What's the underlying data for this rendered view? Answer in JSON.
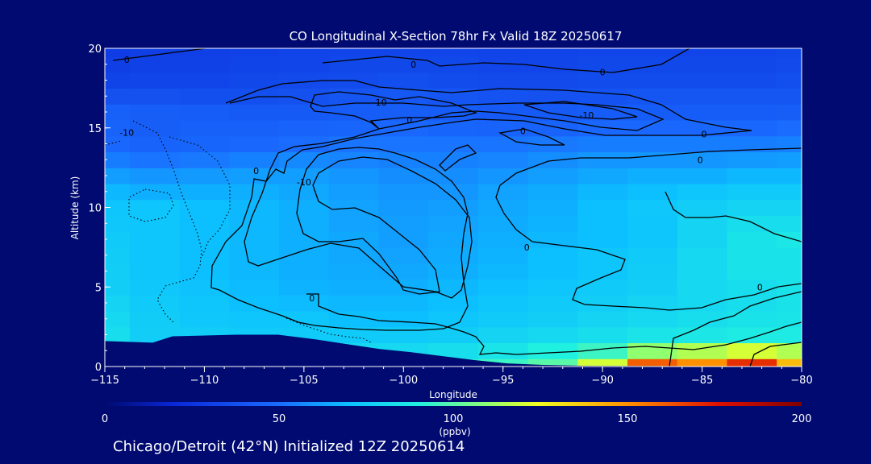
{
  "chart_data": {
    "type": "heatmap",
    "title": "CO Longitudinal X-Section 78hr  Fx Valid 18Z 20250617",
    "xlabel": "Longitude",
    "ylabel": "Altitude (km)",
    "xlim": [
      -115,
      -80
    ],
    "ylim": [
      0,
      20
    ],
    "xticks": [
      -115,
      -110,
      -105,
      -100,
      -95,
      -90,
      -85,
      -80
    ],
    "xtick_labels": [
      "−115",
      "−110",
      "−105",
      "−100",
      "−95",
      "−90",
      "−85",
      "−80"
    ],
    "yticks": [
      0,
      5,
      10,
      15,
      20
    ],
    "ytick_labels": [
      "0",
      "5",
      "10",
      "15",
      "20"
    ],
    "colorbar": {
      "min": 0,
      "max": 200,
      "ticks": [
        0,
        50,
        100,
        150,
        200
      ],
      "tick_labels": [
        "0",
        "50",
        "100",
        "150",
        "200"
      ],
      "unit_label": "(ppbv)"
    },
    "contour_labels": [
      {
        "text": "0",
        "lon": -113.9,
        "alt": 19.3
      },
      {
        "text": "0",
        "lon": -99.5,
        "alt": 19.0
      },
      {
        "text": "0",
        "lon": -90.0,
        "alt": 18.5
      },
      {
        "text": "-10",
        "lon": -113.9,
        "alt": 14.7
      },
      {
        "text": "-10",
        "lon": -101.2,
        "alt": 16.6
      },
      {
        "text": "0",
        "lon": -99.7,
        "alt": 15.5
      },
      {
        "text": "-10",
        "lon": -90.8,
        "alt": 15.8
      },
      {
        "text": "0",
        "lon": -94.0,
        "alt": 14.8
      },
      {
        "text": "0",
        "lon": -84.9,
        "alt": 14.6
      },
      {
        "text": "0",
        "lon": -85.1,
        "alt": 13.0
      },
      {
        "text": "0",
        "lon": -107.4,
        "alt": 12.3
      },
      {
        "text": "-10",
        "lon": -105.0,
        "alt": 11.6
      },
      {
        "text": "0",
        "lon": -93.8,
        "alt": 7.5
      },
      {
        "text": "0",
        "lon": -104.6,
        "alt": 4.3
      },
      {
        "text": "0",
        "lon": -82.1,
        "alt": 5.0
      }
    ],
    "terrain": [
      [
        -115,
        1.6
      ],
      [
        -112.6,
        1.5
      ],
      [
        -111.6,
        1.9
      ],
      [
        -108.4,
        2.0
      ],
      [
        -106.3,
        2.0
      ],
      [
        -104.4,
        1.7
      ],
      [
        -102.8,
        1.4
      ],
      [
        -101.2,
        1.1
      ],
      [
        -99.6,
        0.9
      ],
      [
        -98.0,
        0.65
      ],
      [
        -96.4,
        0.4
      ],
      [
        -94.8,
        0.2
      ],
      [
        -93.0,
        0.1
      ],
      [
        -91.0,
        0.05
      ],
      [
        -80,
        0.0
      ]
    ],
    "field": {
      "x": [
        -115,
        -112.5,
        -110,
        -107.5,
        -105,
        -102.5,
        -100,
        -97.5,
        -95,
        -92.5,
        -90,
        -87.5,
        -85,
        -82.5,
        -80
      ],
      "y": [
        0,
        1,
        2,
        3,
        4,
        5,
        6,
        7,
        8,
        9,
        10,
        11,
        12,
        13,
        14,
        15,
        16,
        17,
        18,
        19,
        20
      ],
      "values": [
        [
          55,
          60,
          70,
          75,
          75,
          80,
          85,
          90,
          95,
          100,
          120,
          160,
          150,
          170,
          140
        ],
        [
          70,
          72,
          74,
          76,
          78,
          80,
          80,
          82,
          85,
          90,
          95,
          110,
          115,
          120,
          115
        ],
        [
          82,
          76,
          75,
          74,
          74,
          74,
          74,
          75,
          78,
          80,
          82,
          85,
          86,
          88,
          88
        ],
        [
          80,
          75,
          73,
          72,
          72,
          70,
          70,
          72,
          74,
          76,
          78,
          80,
          82,
          84,
          85
        ],
        [
          78,
          74,
          72,
          70,
          69,
          68,
          68,
          70,
          72,
          74,
          76,
          78,
          80,
          82,
          84
        ],
        [
          76,
          73,
          71,
          69,
          67,
          66,
          66,
          68,
          70,
          72,
          74,
          76,
          80,
          82,
          84
        ],
        [
          76,
          72,
          70,
          68,
          66,
          65,
          64,
          66,
          68,
          70,
          72,
          75,
          80,
          84,
          84
        ],
        [
          75,
          72,
          70,
          68,
          66,
          64,
          63,
          65,
          67,
          70,
          72,
          74,
          80,
          84,
          84
        ],
        [
          74,
          72,
          70,
          68,
          66,
          64,
          62,
          64,
          66,
          68,
          70,
          72,
          78,
          84,
          86
        ],
        [
          73,
          72,
          70,
          68,
          66,
          63,
          62,
          63,
          65,
          67,
          70,
          72,
          78,
          82,
          82
        ],
        [
          72,
          72,
          70,
          68,
          66,
          63,
          61,
          62,
          64,
          66,
          70,
          73,
          76,
          78,
          78
        ],
        [
          68,
          66,
          66,
          66,
          64,
          62,
          60,
          60,
          63,
          65,
          68,
          70,
          72,
          74,
          74
        ],
        [
          62,
          60,
          61,
          62,
          62,
          60,
          58,
          58,
          60,
          62,
          64,
          66,
          66,
          68,
          68
        ],
        [
          54,
          52,
          53,
          55,
          57,
          56,
          55,
          55,
          56,
          58,
          60,
          60,
          60,
          61,
          62
        ],
        [
          48,
          46,
          47,
          48,
          50,
          52,
          52,
          52,
          52,
          53,
          54,
          54,
          54,
          54,
          55
        ],
        [
          46,
          44,
          45,
          45,
          46,
          47,
          48,
          47,
          46,
          46,
          48,
          48,
          48,
          48,
          50
        ],
        [
          45,
          44,
          43,
          42,
          42,
          43,
          44,
          43,
          42,
          42,
          43,
          43,
          43,
          43,
          44
        ],
        [
          38,
          38,
          37,
          37,
          38,
          40,
          41,
          40,
          39,
          38,
          39,
          40,
          40,
          40,
          40
        ],
        [
          32,
          33,
          33,
          34,
          35,
          36,
          37,
          36,
          35,
          35,
          36,
          36,
          36,
          36,
          37
        ],
        [
          30,
          31,
          31,
          32,
          33,
          34,
          34,
          34,
          33,
          33,
          34,
          34,
          34,
          34,
          35
        ],
        [
          29,
          30,
          30,
          31,
          32,
          33,
          33,
          33,
          32,
          32,
          33,
          33,
          33,
          33,
          34
        ]
      ]
    }
  },
  "footer": {
    "caption": "Chicago/Detroit (42°N) Initialized 12Z 20250614"
  },
  "colors": {
    "background": "#000a70",
    "terrain": "#000a70",
    "contour": "#000000",
    "text": "#ffffff"
  }
}
